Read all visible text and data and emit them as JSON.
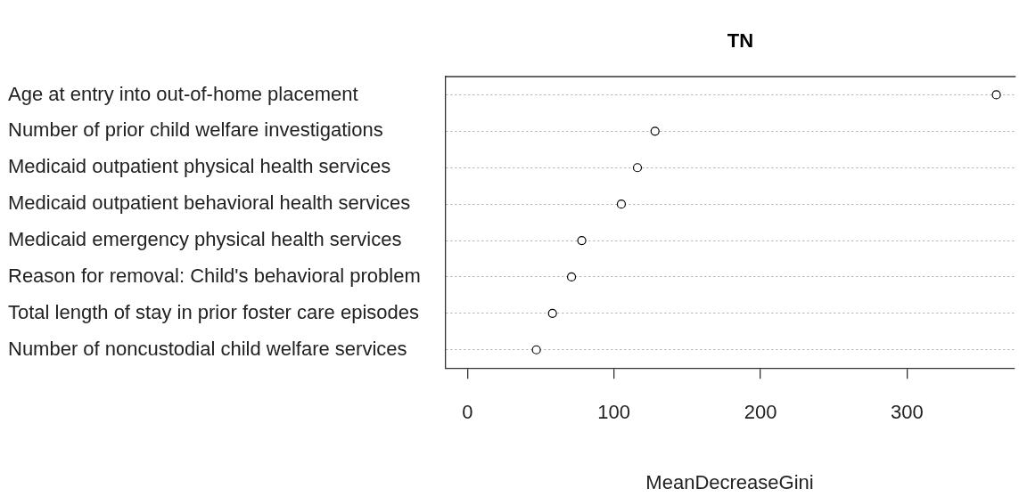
{
  "chart_data": {
    "type": "scatter",
    "title": "TN",
    "xlabel": "MeanDecreaseGini",
    "categories": [
      "Age at entry into out-of-home placement",
      "Number of prior child welfare investigations",
      "Medicaid outpatient physical health services",
      "Medicaid outpatient behavioral health services",
      "Medicaid emergency physical health services",
      "Reason for removal: Child's behavioral problem",
      "Total length of stay in prior foster care episodes",
      "Number of noncustodial child welfare services"
    ],
    "values": [
      361,
      128,
      116,
      105,
      78,
      71,
      58,
      47
    ],
    "color": "#000000",
    "marker": "circle",
    "orientation": "horizontal",
    "xlim": [
      -15,
      373
    ],
    "xticks": [
      0,
      100,
      200,
      300
    ],
    "grid": "y"
  }
}
